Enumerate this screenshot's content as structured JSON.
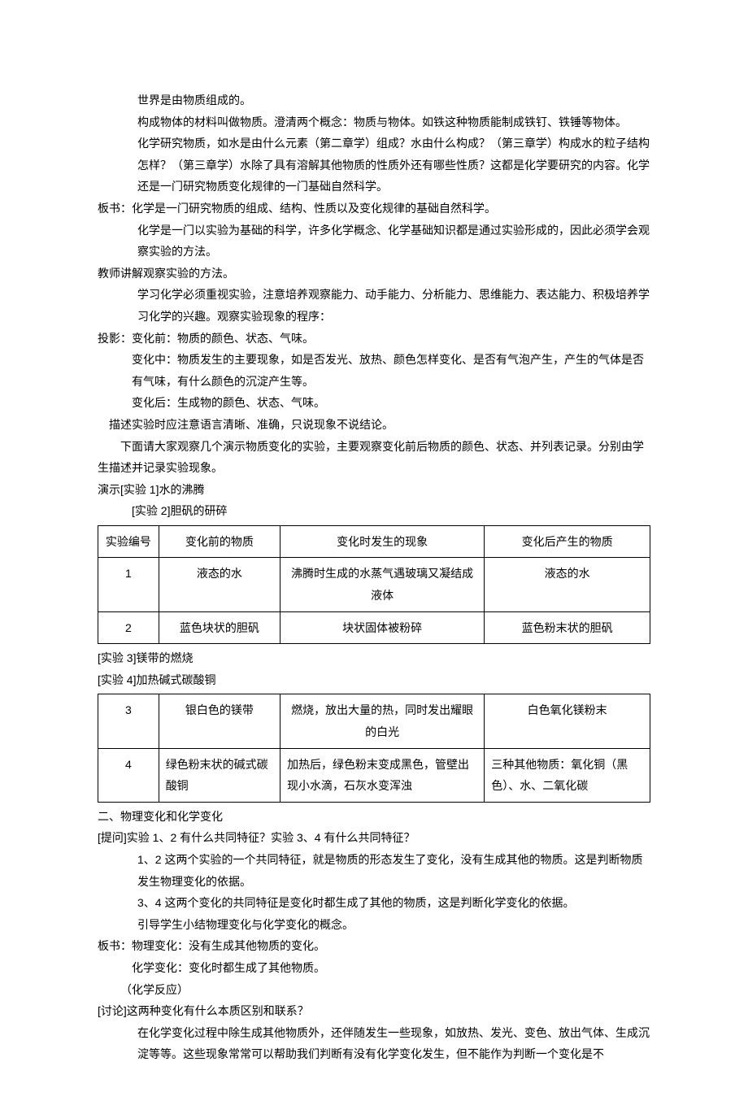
{
  "body_text": {
    "p1": "世界是由物质组成的。",
    "p2": "构成物体的材料叫做物质。澄清两个概念：物质与物体。如铁这种物质能制成铁钉、铁锤等物体。",
    "p3": "化学研究物质，如水是由什么元素（第二章学）组成？水由什么构成？（第三章学）构成水的粒子结构怎样？（第三章学）水除了具有溶解其他物质的性质外还有哪些性质？这都是化学要研究的内容。化学还是一门研究物质变化规律的一门基础自然科学。",
    "board1_label": "板书：",
    "board1_content": "化学是一门研究物质的组成、结构、性质以及变化规律的基础自然科学。",
    "p4": "化学是一门以实验为基础的科学，许多化学概念、化学基础知识都是通过实验形成的，因此必须学会观察实验的方法。",
    "teacher_explain": "教师讲解观察实验的方法。",
    "p5": "学习化学必须重视实验，注意培养观察能力、动手能力、分析能力、思维能力、表达能力、积极培养学习化学的兴趣。观察实验现象的程序：",
    "projection_label": "投影：",
    "projection_1": "变化前：物质的颜色、状态、气味。",
    "projection_2": "变化中：物质发生的主要现象，如是否发光、放热、颜色怎样变化、是否有气泡产生，产生的气体是否有气味，有什么颜色的沉淀产生等。",
    "projection_3": "变化后：生成物的颜色、状态、气味。",
    "p6": "描述实验时应注意语言清晰、准确，只说现象不说结论。",
    "p7": "下面请大家观察几个演示物质变化的实验，主要观察变化前后物质的颜色、状态、并列表记录。分别由学生描述并记录实验现象。",
    "demo1": "演示[实验 1]水的沸腾",
    "demo2": "[实验 2]胆矾的研碎",
    "exp3": "[实验 3]镁带的燃烧",
    "exp4": "[实验 4]加热碱式碳酸铜",
    "section2": "二、物理变化和化学变化",
    "question_label": "[提问]",
    "question_content": "实验 1、2 有什么共同特征？实验 3、4 有什么共同特征？",
    "ans1": "1、2 这两个实验的一个共同特征，就是物质的形态发生了变化，没有生成其他的物质。这是判断物质发生物理变化的依据。",
    "ans2": "3、4 这两个变化的共同特征是变化时都生成了其他的物质，这是判断化学变化的依据。",
    "guide": "引导学生小结物理变化与化学变化的概念。",
    "board2_label": "板书：",
    "board2_1": "物理变化：没有生成其他物质的变化。",
    "board2_2": "化学变化：变化时都生成了其他物质。",
    "board2_3": "（化学反应）",
    "discuss_label": "[讨论]",
    "discuss_content": "这两种变化有什么本质区别和联系？",
    "conclusion": "在化学变化过程中除生成其他物质外，还伴随发生一些现象，如放热、发光、变色、放出气体、生成沉淀等等。这些现象常常可以帮助我们判断有没有化学变化发生，但不能作为判断一个变化是不"
  },
  "table1": {
    "headers": {
      "num": "实验编号",
      "before": "变化前的物质",
      "change": "变化时发生的现象",
      "after": "变化后产生的物质"
    },
    "rows": [
      {
        "num": "1",
        "before": "液态的水",
        "change": "沸腾时生成的水蒸气遇玻璃又凝结成液体",
        "after": "液态的水"
      },
      {
        "num": "2",
        "before": "蓝色块状的胆矾",
        "change": "块状固体被粉碎",
        "after": "蓝色粉末状的胆矾"
      }
    ]
  },
  "table2": {
    "rows": [
      {
        "num": "3",
        "before": "银白色的镁带",
        "change": "燃烧，放出大量的热，同时发出耀眼的白光",
        "after": "白色氧化镁粉末"
      },
      {
        "num": "4",
        "before": "绿色粉末状的碱式碳酸铜",
        "change": "加热后，绿色粉末变成黑色，管壁出现小水滴，石灰水变浑浊",
        "after": "三种其他物质：氧化铜（黑色）、水、二氧化碳"
      }
    ]
  },
  "styling": {
    "font_size": 14,
    "line_height": 1.9,
    "background": "#ffffff",
    "text_color": "#000000",
    "border_color": "#000000"
  }
}
